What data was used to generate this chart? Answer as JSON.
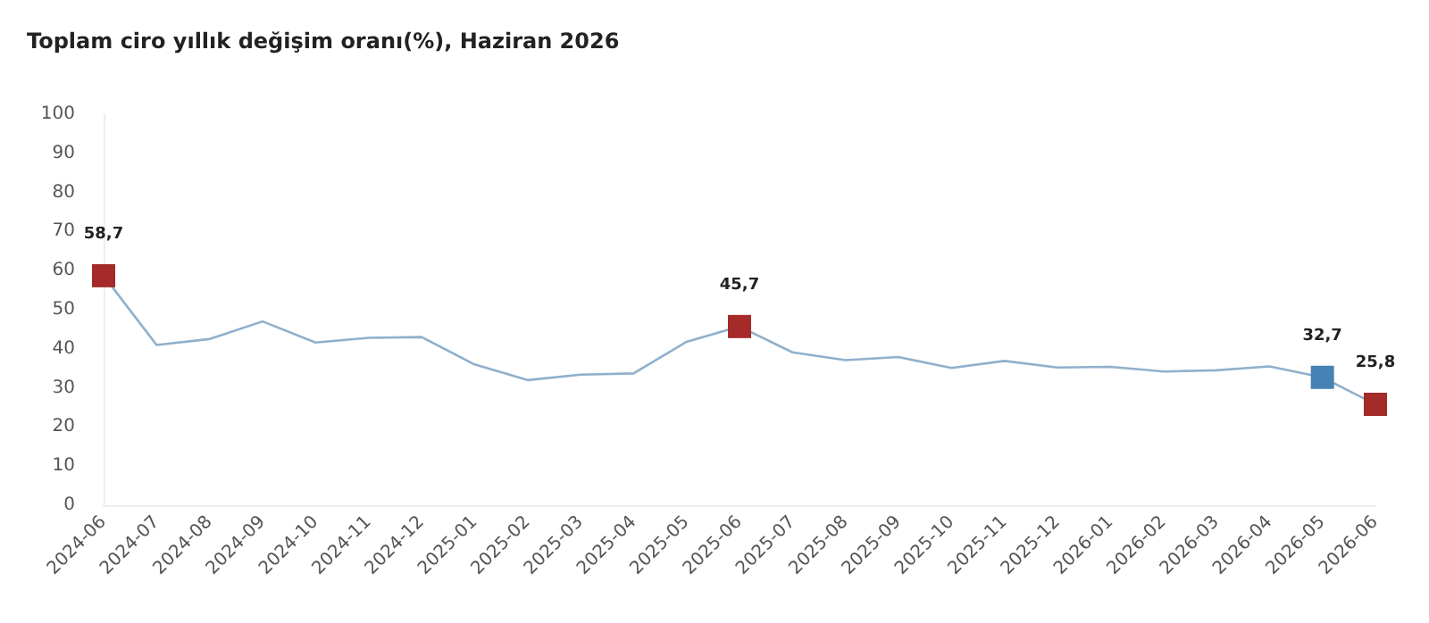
{
  "chart_data": {
    "type": "line",
    "title": "Toplam ciro yıllık değişim oranı(%), Haziran 2026",
    "categories": [
      "2024-06",
      "2024-07",
      "2024-08",
      "2024-09",
      "2024-10",
      "2024-11",
      "2024-12",
      "2025-01",
      "2025-02",
      "2025-03",
      "2025-04",
      "2025-05",
      "2025-06",
      "2025-07",
      "2025-08",
      "2025-09",
      "2025-10",
      "2025-11",
      "2025-12",
      "2026-01",
      "2026-02",
      "2026-03",
      "2026-04",
      "2026-05",
      "2026-06"
    ],
    "series": [
      {
        "color": "#8fb0cc",
        "values": [
          58.7,
          41.0,
          42.5,
          47.0,
          41.6,
          42.8,
          43.0,
          36.0,
          32.0,
          33.4,
          33.7,
          41.8,
          45.7,
          39.1,
          37.1,
          37.9,
          35.1,
          36.9,
          35.2,
          35.4,
          34.2,
          34.5,
          35.5,
          32.7,
          25.8
        ],
        "colors": [
          "#a52a2a",
          null,
          null,
          null,
          null,
          null,
          null,
          null,
          null,
          null,
          null,
          null,
          "#a52a2a",
          null,
          null,
          null,
          null,
          null,
          null,
          null,
          null,
          null,
          null,
          "#4682b4",
          "#a52a2a"
        ],
        "value_labels": [
          "58,7",
          null,
          null,
          null,
          null,
          null,
          null,
          null,
          null,
          null,
          null,
          null,
          "45,7",
          null,
          null,
          null,
          null,
          null,
          null,
          null,
          null,
          null,
          null,
          "32,7",
          "25,8"
        ]
      }
    ],
    "ylim": [
      0,
      100
    ],
    "yticks": [
      0,
      10,
      20,
      30,
      40,
      50,
      60,
      70,
      80,
      90,
      100
    ],
    "grid": false,
    "line_style": "solid"
  }
}
